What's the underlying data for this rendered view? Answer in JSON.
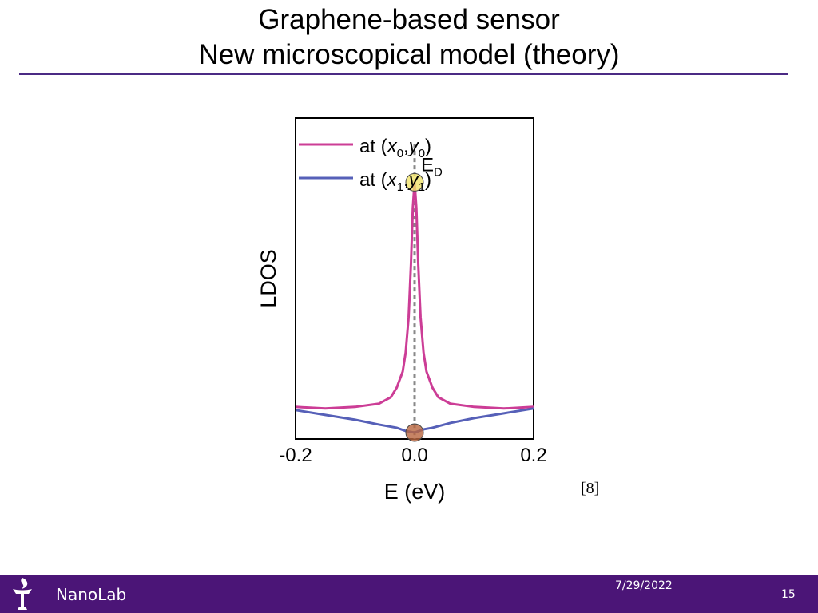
{
  "slide": {
    "title_line1": "Graphene-based sensor",
    "title_line2": "New microscopical model (theory)",
    "citation": "[8]"
  },
  "footer": {
    "brand": "NanoLab",
    "date": "7/29/2022",
    "page": "15"
  },
  "colors": {
    "accent": "#4b2a84",
    "footer_bg": "#4b1577",
    "series0": "#cc3d96",
    "series1": "#5660b8"
  },
  "chart_data": {
    "type": "line",
    "xlabel": "E (eV)",
    "ylabel": "LDOS",
    "xlim": [
      -0.2,
      0.2
    ],
    "ylim": [
      0,
      1
    ],
    "x_ticks": [
      "-0.2",
      "0.0",
      "0.2"
    ],
    "grid": false,
    "legend_position": "top-left",
    "series": [
      {
        "name": "at (x0,y0)",
        "name_base": "at (",
        "sub1": "0",
        "sub2": "0",
        "x": [
          -0.2,
          -0.15,
          -0.1,
          -0.06,
          -0.04,
          -0.03,
          -0.02,
          -0.015,
          -0.01,
          -0.006,
          -0.003,
          0.0,
          0.003,
          0.006,
          0.01,
          0.015,
          0.02,
          0.03,
          0.04,
          0.06,
          0.1,
          0.15,
          0.2
        ],
        "y": [
          0.1,
          0.095,
          0.1,
          0.11,
          0.13,
          0.16,
          0.21,
          0.27,
          0.38,
          0.55,
          0.72,
          0.8,
          0.72,
          0.55,
          0.38,
          0.27,
          0.21,
          0.16,
          0.13,
          0.11,
          0.1,
          0.095,
          0.1
        ]
      },
      {
        "name": "at (x1,y1)",
        "name_base": "at (",
        "sub1": "1",
        "sub2": "1",
        "x": [
          -0.2,
          -0.15,
          -0.1,
          -0.06,
          -0.03,
          -0.015,
          0.0,
          0.015,
          0.03,
          0.06,
          0.1,
          0.15,
          0.2
        ],
        "y": [
          0.09,
          0.075,
          0.06,
          0.045,
          0.035,
          0.025,
          0.02,
          0.03,
          0.035,
          0.05,
          0.065,
          0.08,
          0.095
        ]
      }
    ],
    "annotations": [
      {
        "label": "E",
        "sub": "D",
        "x": 0.0,
        "y": 0.8,
        "marker_color": "#f1e46a"
      },
      {
        "x": 0.0,
        "y": 0.02,
        "marker_color": "#b8653f"
      }
    ],
    "dirac_line_x": 0.0
  }
}
